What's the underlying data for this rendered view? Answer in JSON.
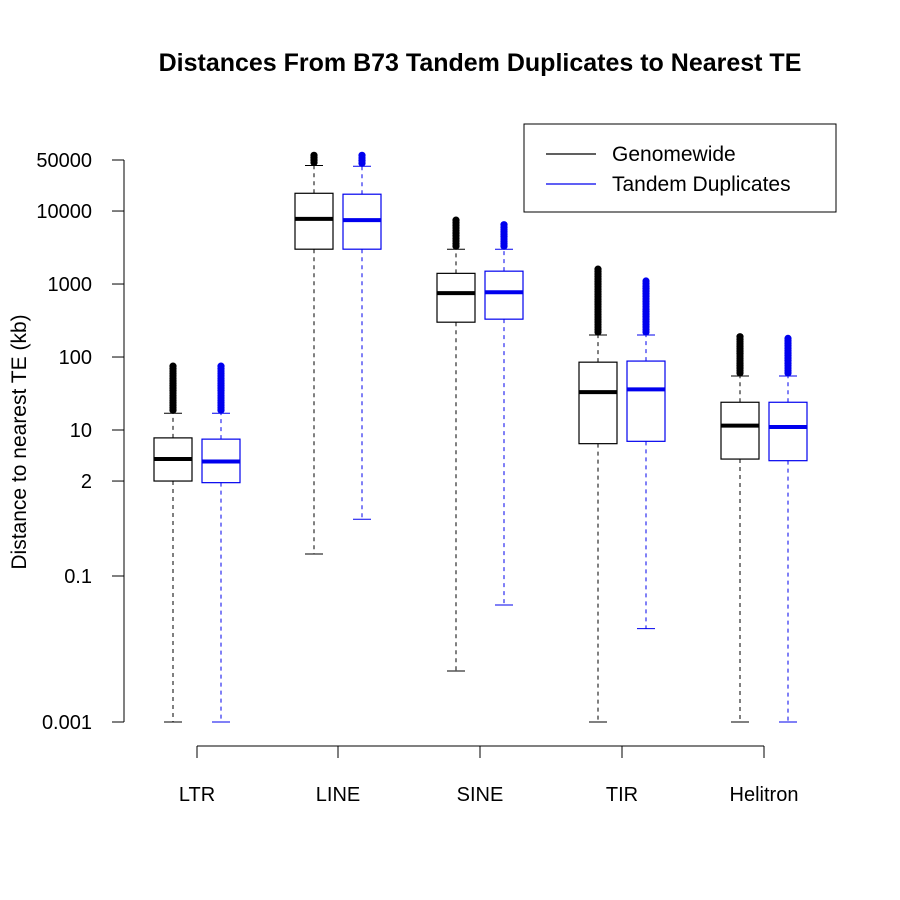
{
  "chart_data": {
    "type": "boxplot",
    "title": "Distances From B73 Tandem Duplicates to Nearest TE",
    "ylabel": "Distance to nearest TE (kb)",
    "xlabel": "",
    "yscale": "log",
    "ylim": [
      0.001,
      60000
    ],
    "yticks": [
      {
        "value": 0.001,
        "label": "0.001"
      },
      {
        "value": 0.1,
        "label": "0.1"
      },
      {
        "value": 2,
        "label": "2"
      },
      {
        "value": 10,
        "label": "10"
      },
      {
        "value": 100,
        "label": "100"
      },
      {
        "value": 1000,
        "label": "1000"
      },
      {
        "value": 10000,
        "label": "10000"
      },
      {
        "value": 50000,
        "label": "50000"
      }
    ],
    "categories": [
      "LTR",
      "LINE",
      "SINE",
      "TIR",
      "Helitron"
    ],
    "legend_position": "top-right",
    "series": [
      {
        "name": "Genomewide",
        "color": "#000000",
        "boxes": [
          {
            "whisker_low": 0.001,
            "q1": 2.0,
            "median": 4.0,
            "q3": 7.8,
            "whisker_high": 17,
            "outlier_max": 75
          },
          {
            "whisker_low": 0.2,
            "q1": 3000,
            "median": 7800,
            "q3": 17500,
            "whisker_high": 42000,
            "outlier_max": 58000
          },
          {
            "whisker_low": 0.005,
            "q1": 300,
            "median": 750,
            "q3": 1400,
            "whisker_high": 3000,
            "outlier_max": 7500
          },
          {
            "whisker_low": 0.001,
            "q1": 6.5,
            "median": 33,
            "q3": 85,
            "whisker_high": 200,
            "outlier_max": 1600
          },
          {
            "whisker_low": 0.001,
            "q1": 4.0,
            "median": 11.5,
            "q3": 24,
            "whisker_high": 55,
            "outlier_max": 190
          }
        ]
      },
      {
        "name": "Tandem Duplicates",
        "color": "#0000ee",
        "boxes": [
          {
            "whisker_low": 0.001,
            "q1": 1.9,
            "median": 3.7,
            "q3": 7.5,
            "whisker_high": 17,
            "outlier_max": 75
          },
          {
            "whisker_low": 0.6,
            "q1": 3000,
            "median": 7500,
            "q3": 17000,
            "whisker_high": 41000,
            "outlier_max": 58000
          },
          {
            "whisker_low": 0.04,
            "q1": 330,
            "median": 770,
            "q3": 1500,
            "whisker_high": 3000,
            "outlier_max": 6500
          },
          {
            "whisker_low": 0.019,
            "q1": 7.0,
            "median": 36,
            "q3": 88,
            "whisker_high": 200,
            "outlier_max": 1100
          },
          {
            "whisker_low": 0.001,
            "q1": 3.8,
            "median": 11.0,
            "q3": 24,
            "whisker_high": 55,
            "outlier_max": 180
          }
        ]
      }
    ]
  }
}
